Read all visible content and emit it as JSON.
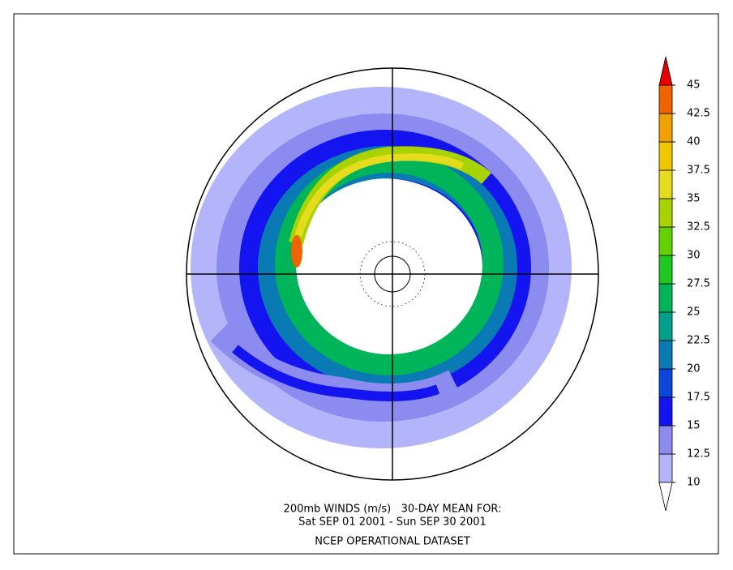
{
  "caption": {
    "line1": "200mb WINDS (m/s)   30-DAY MEAN FOR:",
    "line2": "Sat SEP 01 2001 - Sun SEP 30 2001",
    "line3": "NCEP OPERATIONAL DATASET"
  },
  "colorbar": {
    "ticks": [
      10,
      12.5,
      15,
      17.5,
      20,
      22.5,
      25,
      27.5,
      30,
      32.5,
      35,
      37.5,
      40,
      42.5,
      45
    ],
    "colors": [
      "#b4b4fa",
      "#8c8cf0",
      "#1414f0",
      "#0a46dc",
      "#0a7ab4",
      "#00a08c",
      "#00b45a",
      "#1ec81e",
      "#64d200",
      "#a8d200",
      "#e6dc1e",
      "#f0c800",
      "#f0a000",
      "#f06400"
    ],
    "under_color": "#ffffff",
    "over_color": "#e60000"
  }
}
